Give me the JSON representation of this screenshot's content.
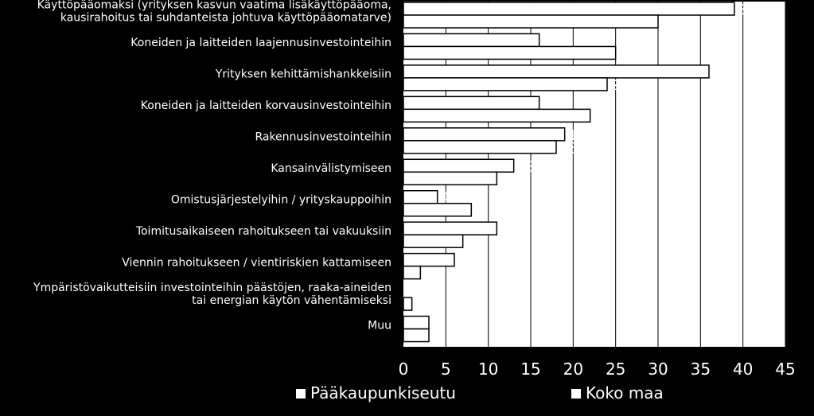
{
  "chart_data": {
    "type": "bar",
    "orientation": "horizontal",
    "categories": [
      [
        "Käyttöpääomaksi (yrityksen kasvun vaatima lisäkäyttöpääoma,",
        "kausirahoitus tai suhdanteista johtuva käyttöpääomatarve)"
      ],
      [
        "Koneiden ja laitteiden laajennusinvestointeihin"
      ],
      [
        "Yrityksen kehittämishankkeisiin"
      ],
      [
        "Koneiden ja laitteiden korvausinvestointeihin"
      ],
      [
        "Rakennusinvestointeihin"
      ],
      [
        "Kansainvälistymiseen"
      ],
      [
        "Omistusjärjestelyihin / yrityskauppoihin"
      ],
      [
        "Toimitusaikaiseen rahoitukseen tai vakuuksiin"
      ],
      [
        "Viennin rahoitukseen / vientiriskien kattamiseen"
      ],
      [
        "Ympäristövaikutteisiin investointeihin päästöjen, raaka-aineiden",
        "tai energian käytön vähentämiseksi"
      ],
      [
        "Muu"
      ]
    ],
    "series": [
      {
        "name": "Pääkaupunkiseutu",
        "values": [
          39,
          16,
          36,
          16,
          19,
          13,
          4,
          11,
          6,
          0,
          3
        ]
      },
      {
        "name": "Koko maa",
        "values": [
          30,
          25,
          24,
          22,
          18,
          11,
          8,
          7,
          2,
          1,
          3
        ]
      }
    ],
    "xlim": [
      0,
      45
    ],
    "xticks": [
      0,
      5,
      10,
      15,
      20,
      25,
      30,
      35,
      40,
      45
    ],
    "grid": true,
    "legend_position": "bottom",
    "colors": {
      "background": "#000000",
      "bar": "#ffffff",
      "bar_border": "#000000",
      "grid": "#000000",
      "text": "#ffffff"
    }
  }
}
